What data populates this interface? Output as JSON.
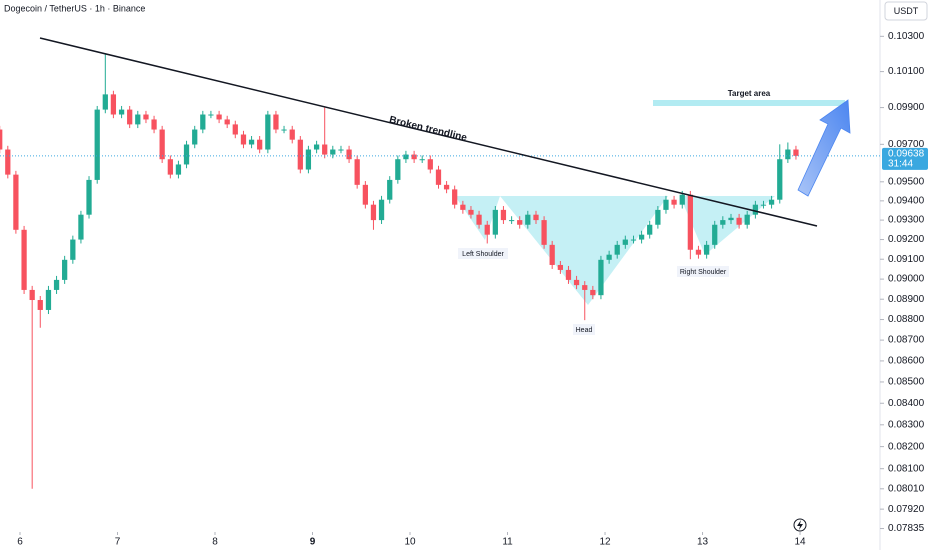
{
  "header": {
    "symbol": "Dogecoin / TetherUS · 1h · Binance",
    "currency": "USDT"
  },
  "chart_data": {
    "type": "candlestick",
    "log_scale": true,
    "x": [
      5.792,
      5.875,
      5.958,
      6.042,
      6.125,
      6.208,
      6.292,
      6.375,
      6.458,
      6.542,
      6.625,
      6.708,
      6.792,
      6.875,
      6.958,
      7.042,
      7.125,
      7.208,
      7.292,
      7.375,
      7.458,
      7.542,
      7.625,
      7.708,
      7.792,
      7.875,
      7.958,
      8.042,
      8.125,
      8.208,
      8.292,
      8.375,
      8.458,
      8.542,
      8.625,
      8.708,
      8.792,
      8.875,
      8.958,
      9.042,
      9.125,
      9.208,
      9.292,
      9.375,
      9.458,
      9.542,
      9.625,
      9.708,
      9.792,
      9.875,
      9.958,
      10.042,
      10.125,
      10.208,
      10.292,
      10.375,
      10.458,
      10.542,
      10.625,
      10.708,
      10.792,
      10.875,
      10.958,
      11.042,
      11.125,
      11.208,
      11.292,
      11.375,
      11.458,
      11.542,
      11.625,
      11.708,
      11.792,
      11.875,
      11.958,
      12.042,
      12.125,
      12.208,
      12.292,
      12.375,
      12.458,
      12.542,
      12.625,
      12.708,
      12.792,
      12.875,
      12.958,
      13.042,
      13.125,
      13.208,
      13.292,
      13.375,
      13.458,
      13.542,
      13.625,
      13.708,
      13.792,
      13.875,
      13.958
    ],
    "open": [
      0.0978,
      0.09672,
      0.09538,
      0.0925,
      0.08946,
      0.08896,
      0.08847,
      0.08946,
      0.08996,
      0.09097,
      0.092,
      0.09328,
      0.0951,
      0.09889,
      0.09973,
      0.09862,
      0.09889,
      0.09808,
      0.09862,
      0.09835,
      0.0978,
      0.0962,
      0.09538,
      0.09592,
      0.09699,
      0.0978,
      0.09862,
      0.09862,
      0.09835,
      0.09808,
      0.09753,
      0.09699,
      0.09725,
      0.09672,
      0.09862,
      0.0978,
      0.0978,
      0.09725,
      0.09565,
      0.09672,
      0.09699,
      0.09645,
      0.09672,
      0.09672,
      0.0962,
      0.09484,
      0.0938,
      0.093,
      0.09406,
      0.0951,
      0.0962,
      0.09645,
      0.0962,
      0.0962,
      0.09565,
      0.09484,
      0.0946,
      0.0938,
      0.09353,
      0.09328,
      0.09276,
      0.09225,
      0.09353,
      0.093,
      0.093,
      0.09276,
      0.09328,
      0.093,
      0.09173,
      0.09071,
      0.09046,
      0.08996,
      0.0897,
      0.08946,
      0.0892,
      0.09097,
      0.09123,
      0.09173,
      0.092,
      0.092,
      0.09225,
      0.09276,
      0.09353,
      0.09406,
      0.0938,
      0.09432,
      0.09148,
      0.09123,
      0.09173,
      0.09276,
      0.093,
      0.09312,
      0.09276,
      0.09328,
      0.0938,
      0.0938,
      0.09406,
      0.0962,
      0.09672
    ],
    "high": [
      0.098,
      0.09692,
      0.09558,
      0.0927,
      0.08966,
      0.08916,
      0.08966,
      0.09016,
      0.09117,
      0.0922,
      0.09348,
      0.0953,
      0.09909,
      0.102,
      0.09993,
      0.09909,
      0.09909,
      0.09882,
      0.09882,
      0.09855,
      0.098,
      0.0964,
      0.09612,
      0.09719,
      0.098,
      0.09882,
      0.09882,
      0.09882,
      0.09855,
      0.09828,
      0.09773,
      0.09745,
      0.09745,
      0.09882,
      0.09882,
      0.098,
      0.098,
      0.09745,
      0.09692,
      0.09719,
      0.099,
      0.09692,
      0.09692,
      0.09692,
      0.0964,
      0.09504,
      0.094,
      0.09426,
      0.0953,
      0.0964,
      0.09665,
      0.09665,
      0.0964,
      0.0964,
      0.09585,
      0.09504,
      0.0948,
      0.094,
      0.09373,
      0.09348,
      0.09296,
      0.09373,
      0.09373,
      0.0932,
      0.0932,
      0.09348,
      0.09348,
      0.0932,
      0.09193,
      0.09091,
      0.09066,
      0.09016,
      0.0899,
      0.08966,
      0.09117,
      0.09143,
      0.09193,
      0.0922,
      0.0922,
      0.09245,
      0.09296,
      0.09373,
      0.09426,
      0.09426,
      0.09452,
      0.09452,
      0.09168,
      0.09193,
      0.09296,
      0.0932,
      0.09332,
      0.09332,
      0.09348,
      0.094,
      0.094,
      0.09426,
      0.097,
      0.0971,
      0.09692
    ],
    "low": [
      0.09652,
      0.09518,
      0.0923,
      0.08926,
      0.0801,
      0.0876,
      0.08827,
      0.08926,
      0.08976,
      0.09077,
      0.0918,
      0.09308,
      0.0949,
      0.09869,
      0.09842,
      0.09842,
      0.09788,
      0.09788,
      0.09815,
      0.0976,
      0.096,
      0.09518,
      0.09518,
      0.09572,
      0.09679,
      0.0976,
      0.09842,
      0.09815,
      0.09788,
      0.09733,
      0.09679,
      0.09679,
      0.09652,
      0.09652,
      0.0976,
      0.0976,
      0.09705,
      0.09545,
      0.09545,
      0.09652,
      0.09625,
      0.09625,
      0.09652,
      0.096,
      0.09464,
      0.0936,
      0.0925,
      0.0928,
      0.09386,
      0.0949,
      0.096,
      0.096,
      0.096,
      0.09545,
      0.09464,
      0.0944,
      0.0936,
      0.09333,
      0.09308,
      0.09256,
      0.0918,
      0.09205,
      0.0928,
      0.0928,
      0.09256,
      0.09256,
      0.0928,
      0.09153,
      0.09051,
      0.09026,
      0.08976,
      0.0895,
      0.08797,
      0.089,
      0.089,
      0.09077,
      0.09103,
      0.09153,
      0.0918,
      0.0918,
      0.09205,
      0.09256,
      0.09333,
      0.0936,
      0.0936,
      0.091,
      0.09103,
      0.09103,
      0.09153,
      0.09256,
      0.0928,
      0.09256,
      0.09256,
      0.09308,
      0.0936,
      0.0936,
      0.09386,
      0.096,
      0.09618
    ],
    "close": [
      0.09672,
      0.09538,
      0.0925,
      0.08946,
      0.08896,
      0.08847,
      0.08946,
      0.08996,
      0.09097,
      0.092,
      0.09328,
      0.0951,
      0.09889,
      0.09973,
      0.09862,
      0.09889,
      0.09808,
      0.09862,
      0.09835,
      0.0978,
      0.0962,
      0.09538,
      0.09592,
      0.09699,
      0.0978,
      0.09862,
      0.09862,
      0.09835,
      0.09808,
      0.09753,
      0.09699,
      0.09725,
      0.09672,
      0.09862,
      0.0978,
      0.0978,
      0.09725,
      0.09565,
      0.09672,
      0.09699,
      0.09645,
      0.09672,
      0.09672,
      0.0962,
      0.09484,
      0.0938,
      0.093,
      0.09406,
      0.0951,
      0.0962,
      0.09645,
      0.0962,
      0.0962,
      0.09565,
      0.09484,
      0.0946,
      0.0938,
      0.09353,
      0.09328,
      0.09276,
      0.09225,
      0.09353,
      0.093,
      0.093,
      0.09276,
      0.09328,
      0.093,
      0.09173,
      0.09071,
      0.09046,
      0.08996,
      0.0897,
      0.08946,
      0.0892,
      0.09097,
      0.09123,
      0.09173,
      0.092,
      0.092,
      0.09225,
      0.09276,
      0.09353,
      0.09406,
      0.0938,
      0.09432,
      0.09148,
      0.09123,
      0.09173,
      0.09276,
      0.093,
      0.09312,
      0.09276,
      0.09328,
      0.0938,
      0.0938,
      0.09406,
      0.0962,
      0.09672,
      0.09638
    ],
    "up_color": "#22ab94",
    "down_color": "#f7525f",
    "xlim": [
      5.795,
      14.82
    ],
    "xticks": [
      6,
      7,
      8,
      9,
      10,
      11,
      12,
      13,
      14
    ],
    "ylim": [
      0.0782,
      0.1051
    ],
    "yticks": [
      {
        "value": 0.103,
        "label": "0.10300"
      },
      {
        "value": 0.101,
        "label": "0.10100"
      },
      {
        "value": 0.099,
        "label": "0.09900"
      },
      {
        "value": 0.097,
        "label": "0.09700"
      },
      {
        "value": 0.095,
        "label": "0.09500"
      },
      {
        "value": 0.094,
        "label": "0.09400"
      },
      {
        "value": 0.093,
        "label": "0.09300"
      },
      {
        "value": 0.092,
        "label": "0.09200"
      },
      {
        "value": 0.091,
        "label": "0.09100"
      },
      {
        "value": 0.09,
        "label": "0.09000"
      },
      {
        "value": 0.089,
        "label": "0.08900"
      },
      {
        "value": 0.088,
        "label": "0.08800"
      },
      {
        "value": 0.087,
        "label": "0.08700"
      },
      {
        "value": 0.086,
        "label": "0.08600"
      },
      {
        "value": 0.085,
        "label": "0.08500"
      },
      {
        "value": 0.084,
        "label": "0.08400"
      },
      {
        "value": 0.083,
        "label": "0.08300"
      },
      {
        "value": 0.082,
        "label": "0.08200"
      },
      {
        "value": 0.081,
        "label": "0.08100"
      },
      {
        "value": 0.0801,
        "label": "0.08010"
      },
      {
        "value": 0.0792,
        "label": "0.07920"
      },
      {
        "value": 0.07835,
        "label": "0.07835"
      }
    ],
    "current_price": 0.09638,
    "countdown": "31:44",
    "price_color": "#3aa8e0",
    "annotations": {
      "trendline": "Broken trendline",
      "target": "Target area",
      "left_shoulder": "Left Shoulder",
      "head": "Head",
      "right_shoulder": "Right Shoulder"
    }
  }
}
